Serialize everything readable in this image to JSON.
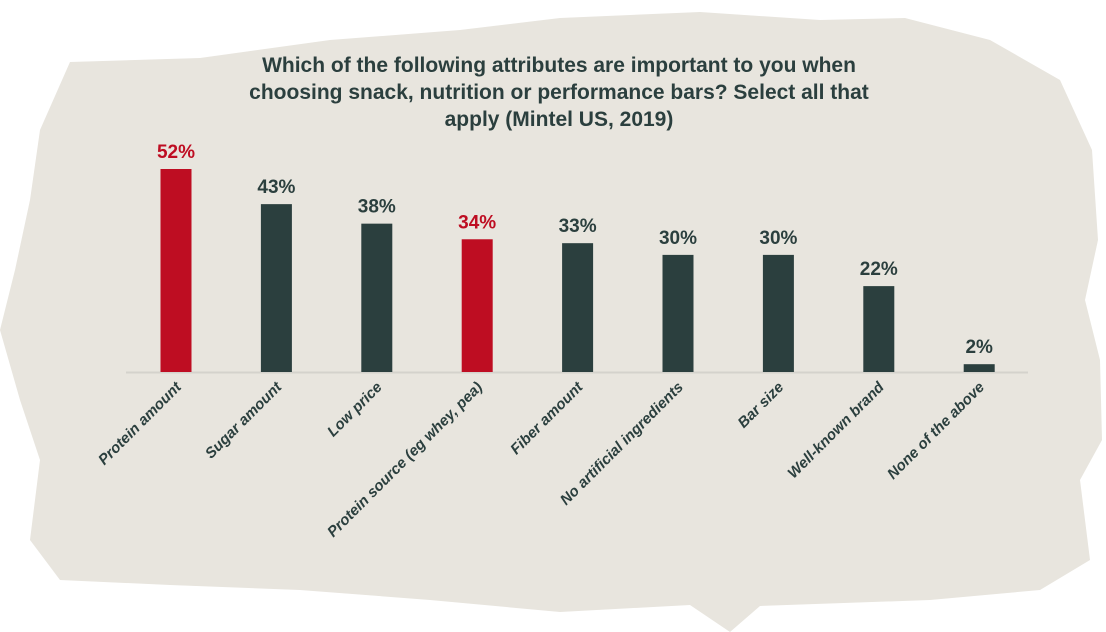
{
  "chart_data": {
    "type": "bar",
    "title": "Which of the following attributes are important to you when choosing snack, nutrition or performance bars? Select all that apply (Mintel US, 2019)",
    "title_lines": [
      "Which of the following attributes are important to you when",
      "choosing snack, nutrition or performance bars? Select all that",
      "apply (Mintel US, 2019)"
    ],
    "categories": [
      "Protein amount",
      "Sugar amount",
      "Low price",
      "Protein source (eg whey, pea)",
      "Fiber amount",
      "No artificial ingredients",
      "Bar size",
      "Well-known brand",
      "None of the above"
    ],
    "values": [
      52,
      43,
      38,
      34,
      33,
      30,
      30,
      22,
      2
    ],
    "value_labels": [
      "52%",
      "43%",
      "38%",
      "34%",
      "33%",
      "30%",
      "30%",
      "22%",
      "2%"
    ],
    "highlighted": [
      true,
      false,
      false,
      true,
      false,
      false,
      false,
      false,
      false
    ],
    "xlabel": "",
    "ylabel": "",
    "ylim": [
      0,
      52
    ],
    "grid": false,
    "legend": "none",
    "colors": {
      "highlight": "#be0d22",
      "default": "#2b3f3e",
      "background": "#e8e5de",
      "baseline": "#d4d2cc"
    }
  }
}
